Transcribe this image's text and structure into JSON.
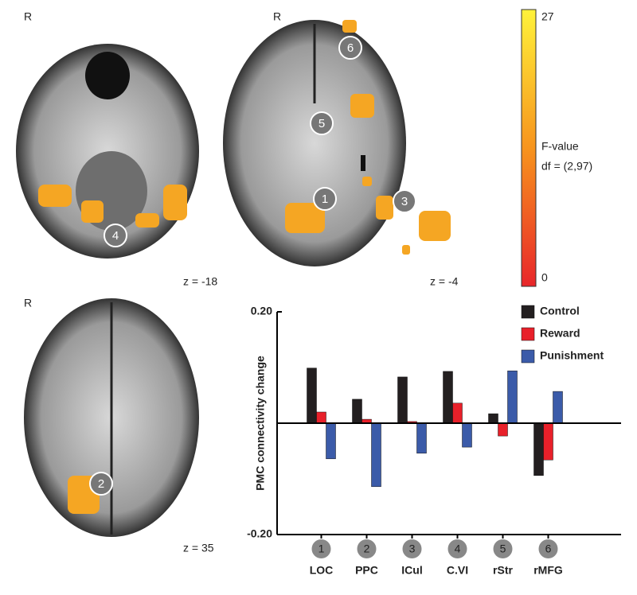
{
  "panels": [
    {
      "side": "R",
      "slice": "z = -18",
      "markers": [
        "4"
      ]
    },
    {
      "side": "R",
      "slice": "z = -4",
      "markers": [
        "6",
        "5",
        "1",
        "3"
      ]
    },
    {
      "side": "R",
      "slice": "z = 35",
      "markers": [
        "2"
      ]
    }
  ],
  "colorbar": {
    "label": "F-value",
    "df": "df = (2,97)",
    "range": [
      0,
      27
    ],
    "ticks": [
      0,
      27
    ]
  },
  "chart_data": {
    "type": "bar",
    "ylabel": "PMC connectivity change",
    "categories": [
      "LOC",
      "PPC",
      "ICul",
      "C.VI",
      "rStr",
      "rMFG"
    ],
    "category_markers": [
      "1",
      "2",
      "3",
      "4",
      "5",
      "6"
    ],
    "series": [
      {
        "name": "Control",
        "color": "#231f20",
        "values": [
          0.099,
          0.043,
          0.083,
          0.093,
          0.017,
          -0.094
        ]
      },
      {
        "name": "Reward",
        "color": "#e8202a",
        "values": [
          0.02,
          0.007,
          0.003,
          0.036,
          -0.023,
          -0.066
        ]
      },
      {
        "name": "Punishment",
        "color": "#3b5ba9",
        "values": [
          -0.064,
          -0.114,
          -0.054,
          -0.043,
          0.094,
          0.057
        ]
      }
    ],
    "ylim": [
      -0.2,
      0.2
    ],
    "yticks": [
      {
        "value": -0.2,
        "label": "-0.20"
      },
      {
        "value": 0.2,
        "label": "0.20"
      }
    ]
  }
}
